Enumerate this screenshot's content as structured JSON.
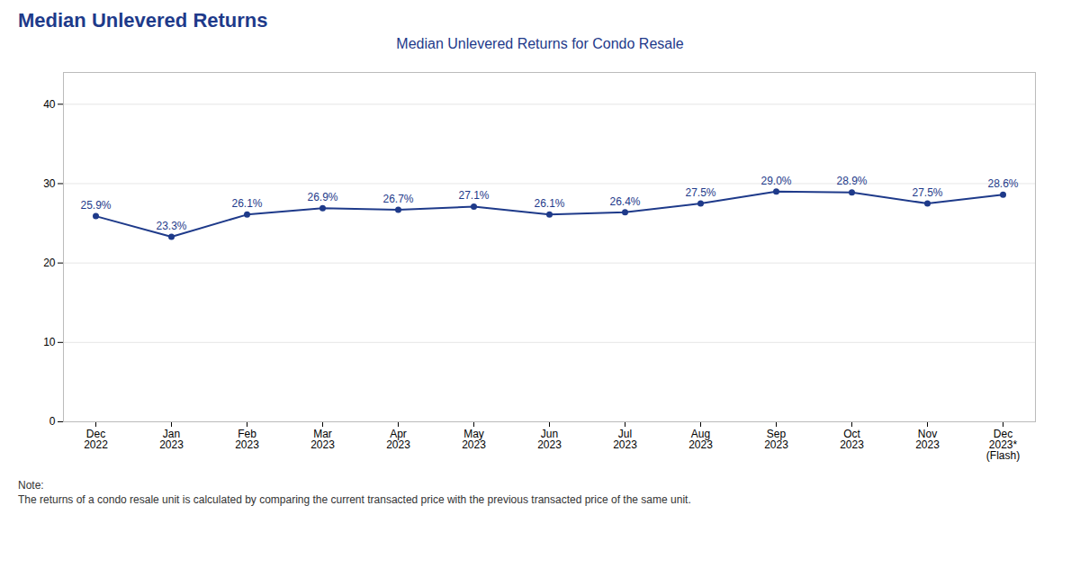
{
  "chart_data": {
    "type": "line",
    "title": "Median Unlevered Returns",
    "subtitle": "Median Unlevered Returns for Condo Resale",
    "categories": [
      "Dec\n2022",
      "Jan\n2023",
      "Feb\n2023",
      "Mar\n2023",
      "Apr\n2023",
      "May\n2023",
      "Jun\n2023",
      "Jul\n2023",
      "Aug\n2023",
      "Sep\n2023",
      "Oct\n2023",
      "Nov\n2023",
      "Dec\n2023*\n(Flash)"
    ],
    "values": [
      25.9,
      23.3,
      26.1,
      26.9,
      26.7,
      27.1,
      26.1,
      26.4,
      27.5,
      29.0,
      28.9,
      27.5,
      28.6
    ],
    "value_labels": [
      "25.9%",
      "23.3%",
      "26.1%",
      "26.9%",
      "26.7%",
      "27.1%",
      "26.1%",
      "26.4%",
      "27.5%",
      "29.0%",
      "28.9%",
      "27.5%",
      "28.6%"
    ],
    "data_labels": true,
    "color": "#1e3a8a",
    "marker": "circle",
    "ylim": [
      0,
      44
    ],
    "yticks": [
      0,
      10,
      20,
      30,
      40
    ],
    "grid": true,
    "annotations": [
      "Note:",
      "The returns of a condo resale unit is calculated by comparing the current transacted price with the previous transacted price of the same unit."
    ]
  }
}
